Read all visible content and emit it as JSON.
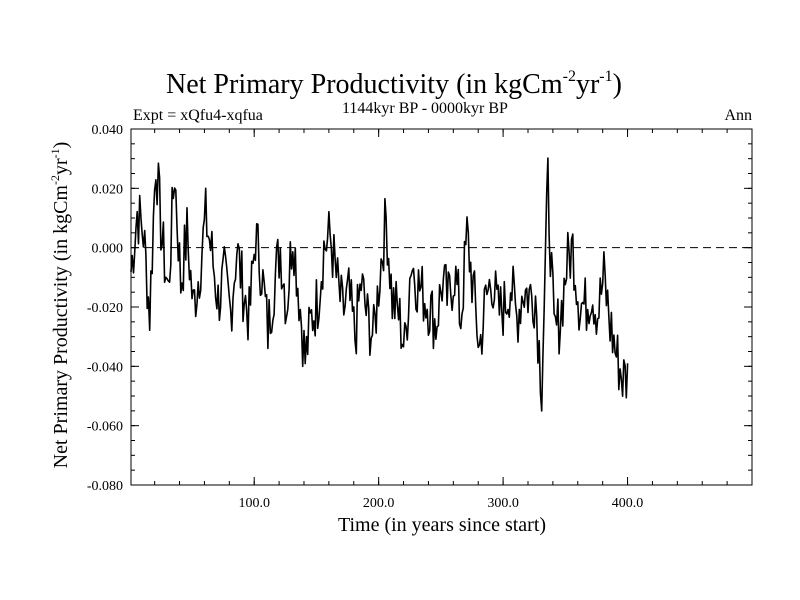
{
  "chart_data": {
    "type": "line",
    "title_main": "Net Primary Productivity (in kgCm",
    "title_sup1": "-2",
    "title_mid": "yr",
    "title_sup2": "-1",
    "title_end": ")",
    "subtitle_left": "Expt = xQfu4-xqfua",
    "subtitle_center": "1144kyr BP - 0000kyr BP",
    "subtitle_right": "Ann",
    "xlabel": "Time (in years since start)",
    "ylabel_main": "Net Primary Productivity (in kgCm",
    "ylabel_sup1": "-2",
    "ylabel_mid": "yr",
    "ylabel_sup2": "-1",
    "ylabel_end": ")",
    "xlim": [
      1,
      500
    ],
    "ylim": [
      -0.08,
      0.04
    ],
    "x_ticks": [
      100,
      200,
      300,
      400
    ],
    "x_tick_labels": [
      "100.0",
      "200.0",
      "300.0",
      "400.0"
    ],
    "y_ticks": [
      0.04,
      0.02,
      0.0,
      -0.02,
      -0.04,
      -0.06,
      -0.08
    ],
    "y_tick_labels": [
      "0.040",
      "0.020",
      "0.000",
      "-0.020",
      "-0.040",
      "-0.060",
      "-0.080"
    ],
    "reference_line": 0.0,
    "series": [
      {
        "name": "Ann",
        "x_start": 1,
        "x_step": 5,
        "values": [
          -0.008,
          0.012,
          0.005,
          -0.022,
          0.03,
          0.002,
          -0.015,
          0.026,
          -0.012,
          0.005,
          -0.02,
          -0.008,
          0.01,
          -0.002,
          -0.018,
          -0.01,
          -0.022,
          0.0,
          -0.014,
          -0.024,
          0.004,
          -0.008,
          -0.028,
          -0.012,
          0.0,
          -0.02,
          0.006,
          -0.016,
          -0.038,
          -0.024,
          -0.018,
          0.0,
          0.004,
          -0.01,
          -0.022,
          -0.016,
          -0.03,
          -0.012,
          -0.024,
          -0.03,
          -0.008,
          0.01,
          -0.018,
          -0.022,
          -0.034,
          -0.004,
          -0.012,
          -0.016,
          -0.02,
          -0.026,
          -0.012,
          -0.018,
          -0.008,
          -0.024,
          0.004,
          -0.014,
          -0.034,
          -0.018,
          -0.01,
          -0.022,
          -0.02,
          -0.012,
          -0.024,
          -0.014,
          -0.016,
          -0.016,
          -0.046,
          0.022,
          -0.03,
          -0.024,
          -0.006,
          0.0,
          -0.018,
          -0.02,
          -0.014,
          -0.022,
          -0.01,
          -0.026,
          -0.036,
          -0.044
        ]
      }
    ]
  }
}
